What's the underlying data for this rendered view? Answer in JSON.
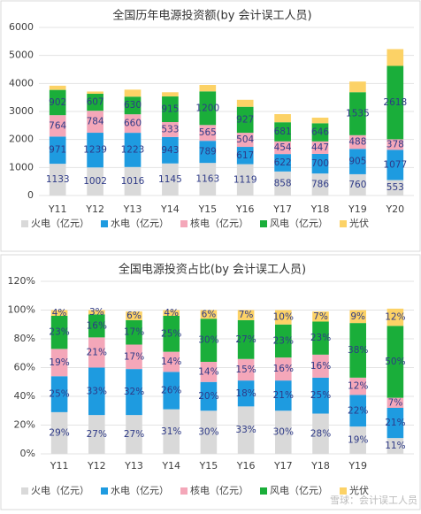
{
  "chart_data": [
    {
      "type": "stacked_bar",
      "title": "全国历年电源投资额(by 会计误工人员)",
      "categories": [
        "Y11",
        "Y12",
        "Y13",
        "Y14",
        "Y15",
        "Y16",
        "Y17",
        "Y18",
        "Y19",
        "Y20"
      ],
      "ylim": [
        0,
        6000
      ],
      "yticks": [
        0,
        1000,
        2000,
        3000,
        4000,
        5000,
        6000
      ],
      "grid": true,
      "legend": "bottom",
      "series": [
        {
          "name": "火电（亿元）",
          "color": "#d9d9d9",
          "data_labels": true,
          "values": [
            1133,
            1002,
            1016,
            1145,
            1163,
            1119,
            858,
            786,
            760,
            553
          ]
        },
        {
          "name": "水电（亿元）",
          "color": "#1e9be0",
          "data_labels": true,
          "values": [
            971,
            1239,
            1223,
            943,
            789,
            617,
            622,
            700,
            905,
            1077
          ]
        },
        {
          "name": "核电（亿元）",
          "color": "#f4a7b9",
          "data_labels": true,
          "values": [
            764,
            784,
            660,
            533,
            565,
            504,
            454,
            447,
            488,
            378
          ]
        },
        {
          "name": "风电（亿元）",
          "color": "#1aae3a",
          "data_labels": true,
          "values": [
            902,
            607,
            630,
            915,
            1200,
            927,
            681,
            646,
            1535,
            2618
          ]
        },
        {
          "name": "光伏",
          "color": "#fcd266",
          "data_labels": false,
          "values": [
            150,
            80,
            250,
            150,
            230,
            250,
            290,
            200,
            380,
            600
          ]
        }
      ]
    },
    {
      "type": "stacked_bar",
      "title": "全国电源投资占比(by 会计误工人员)",
      "categories": [
        "Y11",
        "Y12",
        "Y13",
        "Y14",
        "Y15",
        "Y16",
        "Y17",
        "Y18",
        "Y19",
        null
      ],
      "ylim": [
        0,
        120
      ],
      "yticks": [
        {
          "value": 0,
          "label": "0%"
        },
        {
          "value": 20,
          "label": "20%"
        },
        {
          "value": 40,
          "label": "40%"
        },
        {
          "value": 60,
          "label": "60%"
        },
        {
          "value": 80,
          "label": "80%"
        },
        {
          "value": 100,
          "label": "100%"
        },
        {
          "value": 120,
          "label": "120%"
        }
      ],
      "grid": true,
      "legend": "bottom",
      "series": [
        {
          "name": "火电（亿元）",
          "color": "#d9d9d9",
          "values": [
            29,
            27,
            27,
            31,
            30,
            33,
            30,
            28,
            19,
            11
          ],
          "value_labels": [
            "29%",
            "27%",
            "27%",
            "31%",
            "30%",
            "33%",
            "30%",
            "28%",
            "19%",
            "11%"
          ]
        },
        {
          "name": "水电（亿元）",
          "color": "#1e9be0",
          "values": [
            25,
            33,
            32,
            26,
            20,
            18,
            21,
            25,
            22,
            21
          ],
          "value_labels": [
            "25%",
            "33%",
            "32%",
            "26%",
            "20%",
            "18%",
            "21%",
            "25%",
            "22%",
            "21%"
          ]
        },
        {
          "name": "核电（亿元）",
          "color": "#f4a7b9",
          "values": [
            19,
            21,
            17,
            14,
            14,
            15,
            16,
            16,
            12,
            7
          ],
          "value_labels": [
            "19%",
            "21%",
            "17%",
            "14%",
            "14%",
            "15%",
            "16%",
            "16%",
            "12%",
            "7%"
          ]
        },
        {
          "name": "风电（亿元）",
          "color": "#1aae3a",
          "values": [
            23,
            16,
            17,
            25,
            30,
            27,
            23,
            23,
            38,
            50
          ],
          "value_labels": [
            "23%",
            "16%",
            "17%",
            "25%",
            "30%",
            "27%",
            "23%",
            "23%",
            "38%",
            "50%"
          ]
        },
        {
          "name": "光伏",
          "color": "#fcd266",
          "values": [
            4,
            3,
            6,
            4,
            6,
            7,
            10,
            7,
            9,
            12
          ],
          "value_labels": [
            "4%",
            "3%",
            "6%",
            "4%",
            "6%",
            "7%",
            "10%",
            "7%",
            "9%",
            "12%"
          ]
        }
      ]
    }
  ],
  "watermark": "雪球：会计误工人员"
}
